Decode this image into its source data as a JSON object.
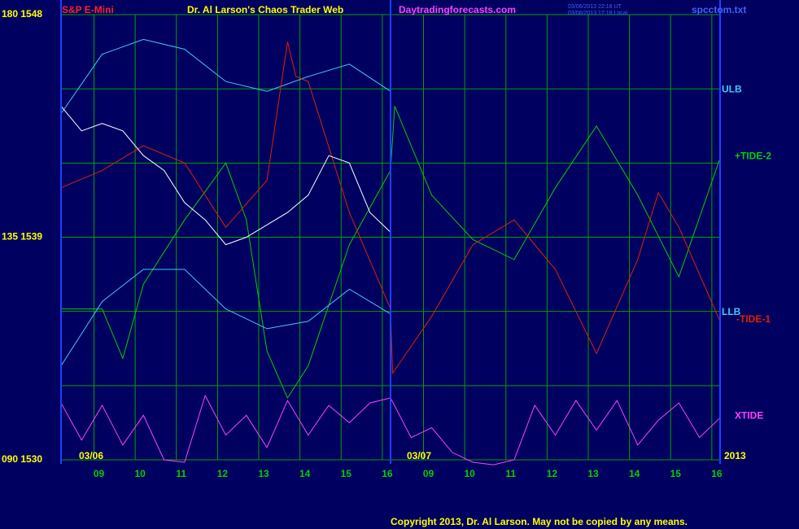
{
  "chart_data": {
    "type": "line",
    "header": {
      "symbol": "S&P E-Mini",
      "title": "Dr. Al Larson's Chaos Trader Web",
      "site": "Daytradingforecasts.com",
      "timestamps": [
        "03/06/2013 22:18 UT",
        "03/06/2013 17:18 Local"
      ],
      "file": "spcctom.txt"
    },
    "dates": [
      "03/06",
      "03/07",
      "2013"
    ],
    "copyright": "Copyright 2013, Dr. Al Larson. May not be copied by any means.",
    "xlim": [
      0,
      16
    ],
    "xticks": [
      {
        "value": 0.8,
        "label": "09"
      },
      {
        "value": 1.8,
        "label": "10"
      },
      {
        "value": 2.8,
        "label": "11"
      },
      {
        "value": 3.8,
        "label": "12"
      },
      {
        "value": 4.8,
        "label": "13"
      },
      {
        "value": 5.8,
        "label": "14"
      },
      {
        "value": 6.8,
        "label": "15"
      },
      {
        "value": 7.8,
        "label": "16"
      },
      {
        "value": 8.8,
        "label": "09"
      },
      {
        "value": 9.8,
        "label": "10"
      },
      {
        "value": 10.8,
        "label": "11"
      },
      {
        "value": 11.8,
        "label": "12"
      },
      {
        "value": 12.8,
        "label": "13"
      },
      {
        "value": 13.8,
        "label": "14"
      },
      {
        "value": 14.8,
        "label": "15"
      },
      {
        "value": 15.8,
        "label": "16"
      }
    ],
    "ylim": [
      1530,
      1548
    ],
    "yticks": [
      {
        "value": 1548,
        "label": "180 1548"
      },
      {
        "value": 1539,
        "label": "135 1539"
      },
      {
        "value": 1530,
        "label": "090 1530"
      }
    ],
    "ygrid": [
      1545,
      1542,
      1536,
      1533
    ],
    "grid": true,
    "series": [
      {
        "name": "ULB",
        "color": "#40c8ff",
        "x": [
          0,
          1,
          2,
          3,
          4,
          5,
          6,
          7,
          8
        ],
        "values": [
          1544.0,
          1546.4,
          1547.0,
          1546.6,
          1545.3,
          1544.9,
          1545.5,
          1546.0,
          1544.9
        ]
      },
      {
        "name": "+TIDE-2",
        "color": "#00d000",
        "x": [
          0,
          1,
          1.5,
          2,
          3,
          4,
          4.5,
          5,
          5.5,
          6,
          7,
          8,
          8.1,
          9,
          10,
          11,
          12,
          13,
          14,
          15,
          16
        ],
        "values": [
          1536.1,
          1536.1,
          1534.1,
          1537.1,
          1539.7,
          1542.0,
          1539.7,
          1534.4,
          1532.5,
          1533.8,
          1538.7,
          1541.7,
          1544.3,
          1540.7,
          1538.9,
          1538.1,
          1541.0,
          1543.5,
          1540.7,
          1537.4,
          1542.2
        ]
      },
      {
        "name": "LLB",
        "color": "#40c8ff",
        "x": [
          0,
          1,
          2,
          3,
          4,
          5,
          6,
          7,
          8
        ],
        "values": [
          1533.8,
          1536.4,
          1537.7,
          1537.7,
          1536.1,
          1535.3,
          1535.6,
          1536.9,
          1535.9
        ]
      },
      {
        "name": "-TIDE-1",
        "color": "#e02000",
        "x": [
          0,
          1,
          2,
          3,
          4,
          5,
          5.5,
          5.7,
          6,
          7,
          8,
          8.05,
          9,
          10,
          11,
          12,
          13,
          14,
          14.5,
          15,
          16
        ],
        "values": [
          1541.0,
          1541.7,
          1542.7,
          1542.0,
          1539.4,
          1541.3,
          1546.9,
          1545.5,
          1545.3,
          1540.0,
          1536.1,
          1533.5,
          1535.8,
          1538.7,
          1539.7,
          1537.7,
          1534.3,
          1538.1,
          1540.8,
          1539.4,
          1535.6
        ]
      },
      {
        "name": "XTIDE",
        "color": "#ff40ff",
        "x": [
          0,
          0.5,
          1,
          1.5,
          2,
          2.5,
          3,
          3.5,
          4,
          4.5,
          5,
          5.5,
          6,
          6.5,
          7,
          7.5,
          8,
          8.5,
          9,
          9.5,
          10,
          10.5,
          11,
          11.5,
          12,
          12.5,
          13,
          13.5,
          14,
          14.5,
          15,
          15.5,
          16
        ],
        "values": [
          1532.3,
          1530.8,
          1532.2,
          1530.6,
          1531.8,
          1530.0,
          1529.9,
          1532.6,
          1531.0,
          1531.8,
          1530.5,
          1532.4,
          1531.0,
          1532.2,
          1531.5,
          1532.3,
          1532.5,
          1530.9,
          1531.3,
          1530.3,
          1529.9,
          1529.8,
          1530.0,
          1532.2,
          1531.0,
          1532.4,
          1531.2,
          1532.4,
          1530.6,
          1531.6,
          1532.3,
          1530.9,
          1531.7
        ]
      },
      {
        "color": "#ffffff",
        "x": [
          0,
          0.5,
          1,
          1.5,
          2,
          2.5,
          3,
          3.5,
          4,
          4.5,
          5,
          5.5,
          6,
          6.5,
          7,
          7.5,
          8
        ],
        "values": [
          1544.3,
          1543.3,
          1543.6,
          1543.3,
          1542.3,
          1541.7,
          1540.4,
          1539.7,
          1538.7,
          1539.0,
          1539.5,
          1540.0,
          1540.7,
          1542.3,
          1542.0,
          1540.0,
          1539.2
        ]
      }
    ]
  }
}
